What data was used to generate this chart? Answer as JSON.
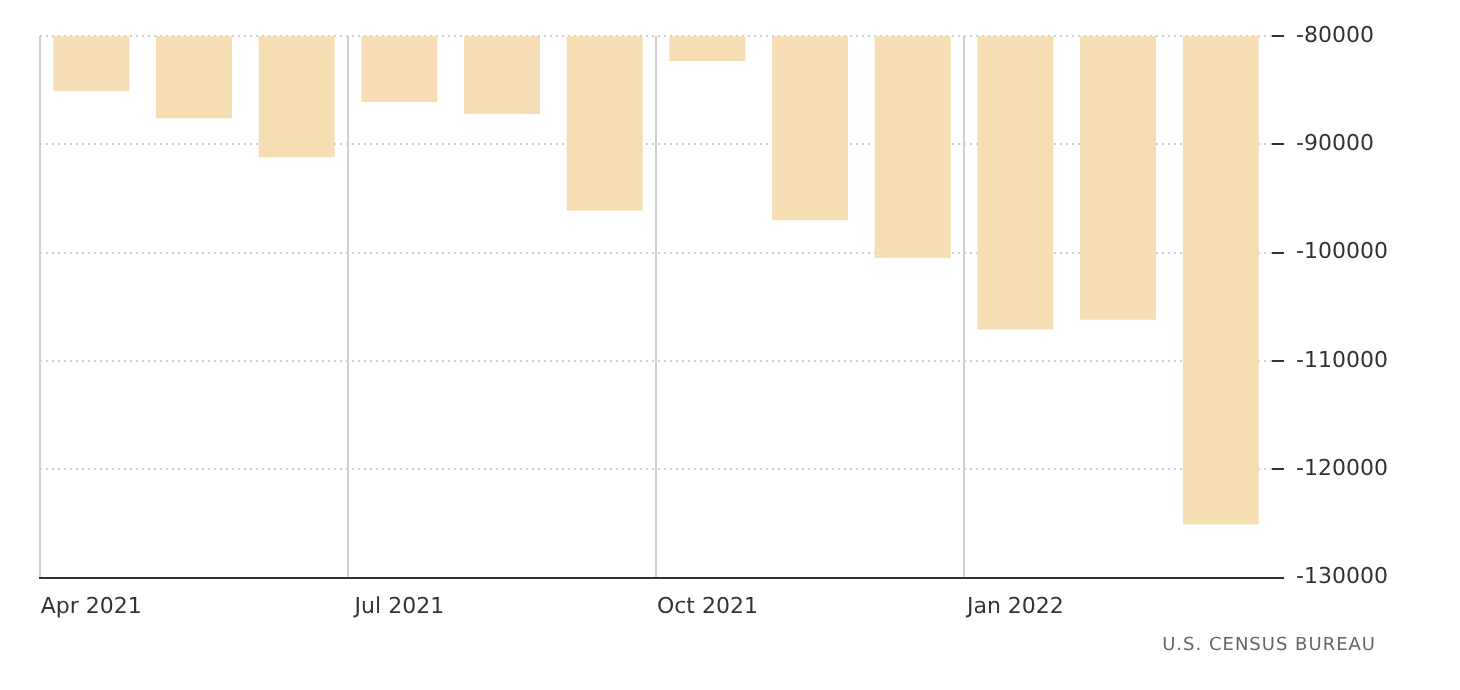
{
  "chart_data": {
    "type": "bar",
    "categories": [
      "Apr 2021",
      null,
      null,
      "Jul 2021",
      null,
      null,
      "Oct 2021",
      null,
      null,
      "Jan 2022",
      null,
      null
    ],
    "values": [
      -85100,
      -87600,
      -91200,
      -86100,
      -87200,
      -96100,
      -82300,
      -97000,
      -100500,
      -107100,
      -106200,
      -125100
    ],
    "color": "#f5deb3",
    "ylim": [
      -130000,
      -80000
    ],
    "yticks": [
      -130000,
      -120000,
      -110000,
      -100000,
      -90000,
      -80000
    ],
    "grid": true,
    "annotations": [
      "U.S.  CENSUS BUREAU"
    ]
  }
}
